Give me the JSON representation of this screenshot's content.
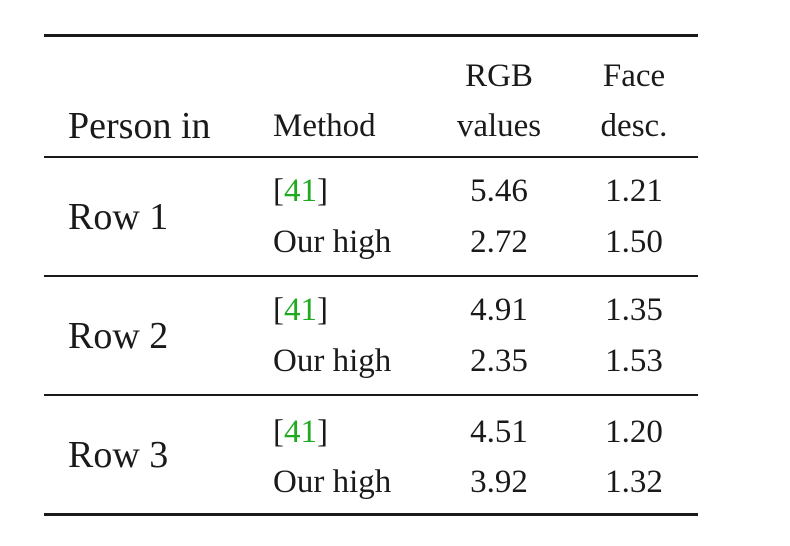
{
  "table": {
    "headers": {
      "person": "Person in",
      "method": "Method",
      "rgb_line1": "RGB",
      "rgb_line2": "values",
      "face_line1": "Face",
      "face_line2": "desc."
    },
    "rows": [
      {
        "person": "Row 1",
        "entries": [
          {
            "cite_open": "[",
            "cite_ref": "41",
            "cite_close": "]",
            "rgb": "5.46",
            "face": "1.21"
          },
          {
            "method": "Our high",
            "rgb": "2.72",
            "face": "1.50"
          }
        ]
      },
      {
        "person": "Row 2",
        "entries": [
          {
            "cite_open": "[",
            "cite_ref": "41",
            "cite_close": "]",
            "rgb": "4.91",
            "face": "1.35"
          },
          {
            "method": "Our high",
            "rgb": "2.35",
            "face": "1.53"
          }
        ]
      },
      {
        "person": "Row 3",
        "entries": [
          {
            "cite_open": "[",
            "cite_ref": "41",
            "cite_close": "]",
            "rgb": "4.51",
            "face": "1.20"
          },
          {
            "method": "Our high",
            "rgb": "3.92",
            "face": "1.32"
          }
        ]
      }
    ],
    "colors": {
      "citation_link": "#1faa1f",
      "text": "#1a1a1a"
    }
  }
}
